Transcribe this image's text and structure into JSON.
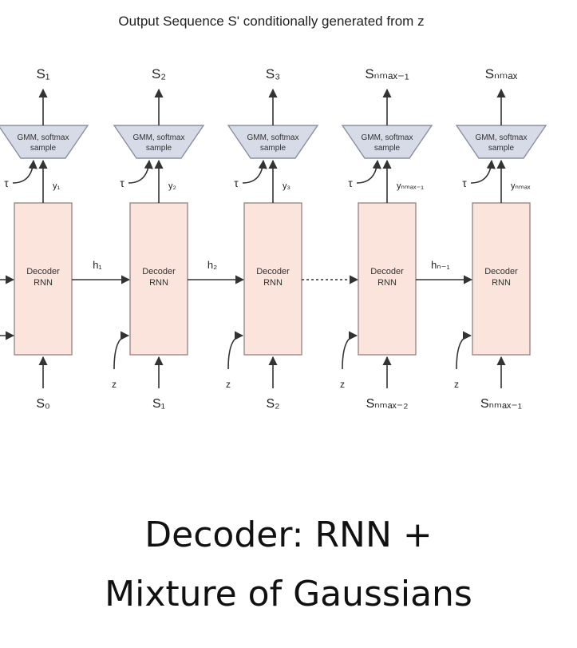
{
  "title": "Output Sequence S' conditionally generated from z",
  "colors": {
    "rnn_fill": "#fbe4dc",
    "rnn_stroke": "#9a8a86",
    "gmm_fill": "#d7dbe8",
    "gmm_stroke": "#8a8fa2",
    "line": "#333333"
  },
  "rnn_label_line1": "Decoder",
  "rnn_label_line2": "RNN",
  "gmm_label_line1": "GMM, softmax",
  "gmm_label_line2": "sample",
  "tau_label": "τ",
  "z_label": "z",
  "blocks": [
    {
      "output": "S₁",
      "y": "y₁",
      "input": "S₀",
      "has_z": false
    },
    {
      "output": "S₂",
      "y": "y₂",
      "input": "S₁",
      "has_z": true
    },
    {
      "output": "S₃",
      "y": "y₃",
      "input": "S₂",
      "has_z": true
    },
    {
      "output": "Sₙₘₐₓ₋₁",
      "y": "yₙₘₐₓ₋₁",
      "input": "Sₙₘₐₓ₋₂",
      "has_z": true
    },
    {
      "output": "Sₙₘₐₓ",
      "y": "yₙₘₐₓ",
      "input": "Sₙₘₐₓ₋₁",
      "has_z": true
    }
  ],
  "hidden_links": [
    {
      "label": "h₁",
      "style": "solid"
    },
    {
      "label": "h₂",
      "style": "solid"
    },
    {
      "label": "",
      "style": "dotted"
    },
    {
      "label": "hₙ₋₁",
      "style": "solid"
    }
  ],
  "caption": {
    "line1": "Decoder: RNN +",
    "line2": "Mixture of Gaussians"
  }
}
